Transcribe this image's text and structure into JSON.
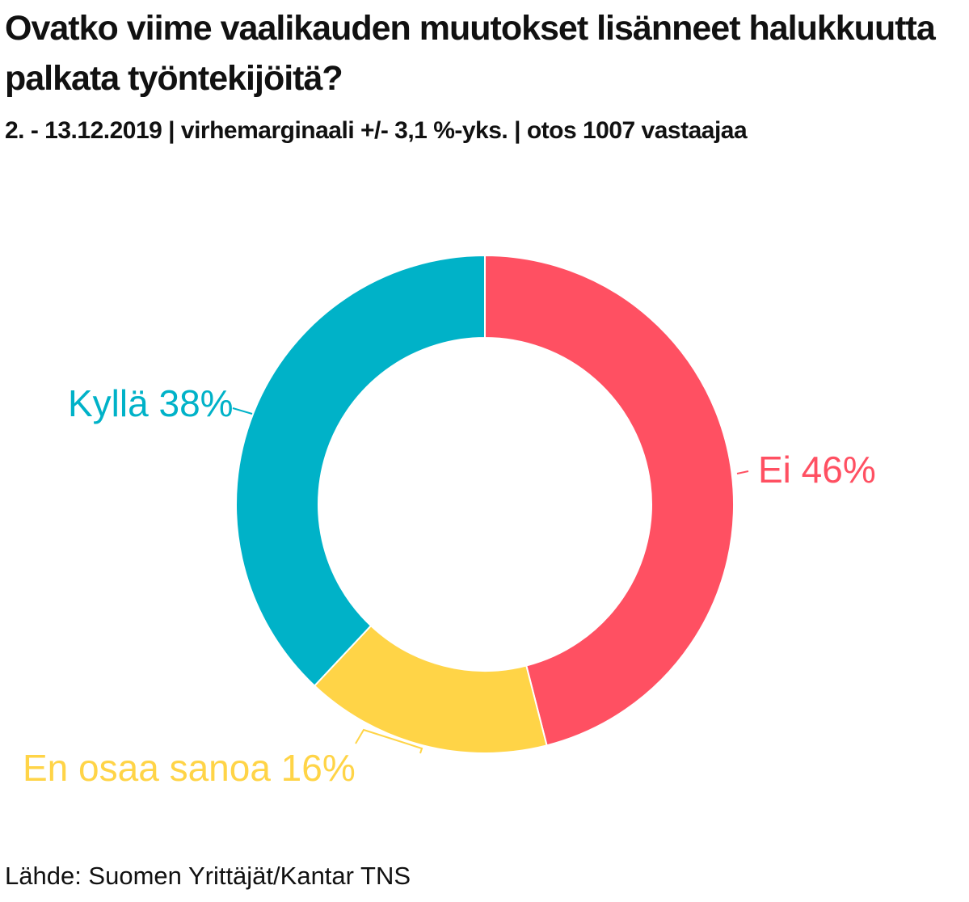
{
  "title": "Ovatko viime vaalikauden muutokset lisänneet halukkuutta palkata työntekijöitä?",
  "subtitle": "2. - 13.12.2019 | virhemarginaali +/- 3,1 %-yks. | otos 1007 vastaajaa",
  "source": "Lähde: Suomen Yrittäjät/Kantar TNS",
  "chart_data": {
    "type": "pie",
    "variant": "donut",
    "categories": [
      "Ei",
      "En osaa sanoa",
      "Kyllä"
    ],
    "values": [
      46,
      16,
      38
    ],
    "unit": "%",
    "labels": [
      "Ei 46%",
      "En osaa sanoa 16%",
      "Kyllä 38%"
    ],
    "colors": [
      "#ff5062",
      "#ffd447",
      "#00b2c8"
    ],
    "start": "top",
    "direction": "clockwise",
    "legend": "none"
  }
}
